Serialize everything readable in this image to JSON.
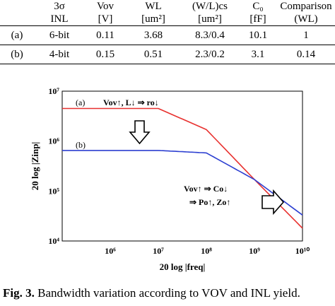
{
  "table": {
    "headers": [
      {
        "line1": "",
        "line2": ""
      },
      {
        "line1": "3σ",
        "line2": "INL"
      },
      {
        "line1": "Vov",
        "line2": "[V]"
      },
      {
        "line1": "WL",
        "line2": "[um²]"
      },
      {
        "line1": "(W/L)cs",
        "line2": "[um²]"
      },
      {
        "line1": "C₀",
        "line2": "[fF]"
      },
      {
        "line1": "Comparison",
        "line2": "(WL)"
      }
    ],
    "rows": [
      [
        "(a)",
        "6-bit",
        "0.11",
        "3.68",
        "8.3/0.4",
        "10.1",
        "1"
      ],
      [
        "(b)",
        "4-bit",
        "0.15",
        "0.51",
        "2.3/0.2",
        "3.1",
        "0.14"
      ]
    ]
  },
  "chart_data": {
    "type": "line",
    "xlabel": "20 log |freq|",
    "ylabel": "20 log |Zinp|",
    "x_scale": "log",
    "y_scale": "log",
    "xlim": [
      100000,
      10000000000
    ],
    "ylim": [
      10000,
      10000000
    ],
    "x_ticks": [
      "10⁶",
      "10⁷",
      "10⁸",
      "10⁹",
      "10¹⁰"
    ],
    "y_ticks": [
      "10⁷",
      "10⁶",
      "10⁵",
      "10⁴"
    ],
    "series": [
      {
        "name": "(a)",
        "color": "#e8312f",
        "x": [
          100000,
          10000000,
          100000000,
          1000000000,
          10000000000
        ],
        "y": [
          4500000,
          4500000,
          1700000,
          170000,
          18000
        ]
      },
      {
        "name": "(b)",
        "color": "#2c3fd1",
        "x": [
          100000,
          10000000,
          100000000,
          1000000000,
          10000000000
        ],
        "y": [
          650000,
          650000,
          580000,
          170000,
          33000
        ]
      }
    ],
    "annotations": {
      "a_label": "(a)",
      "b_label": "(b)",
      "top_text": "Vov↑, L↓ ⇒ ro↓",
      "right_text_1": "Vov↑ ⇒ Co↓",
      "right_text_2": "⇒ Po↑, Zo↑"
    }
  },
  "caption": {
    "prefix": "Fig. 3.",
    "text": " Bandwidth variation according to VOV and INL yield."
  }
}
